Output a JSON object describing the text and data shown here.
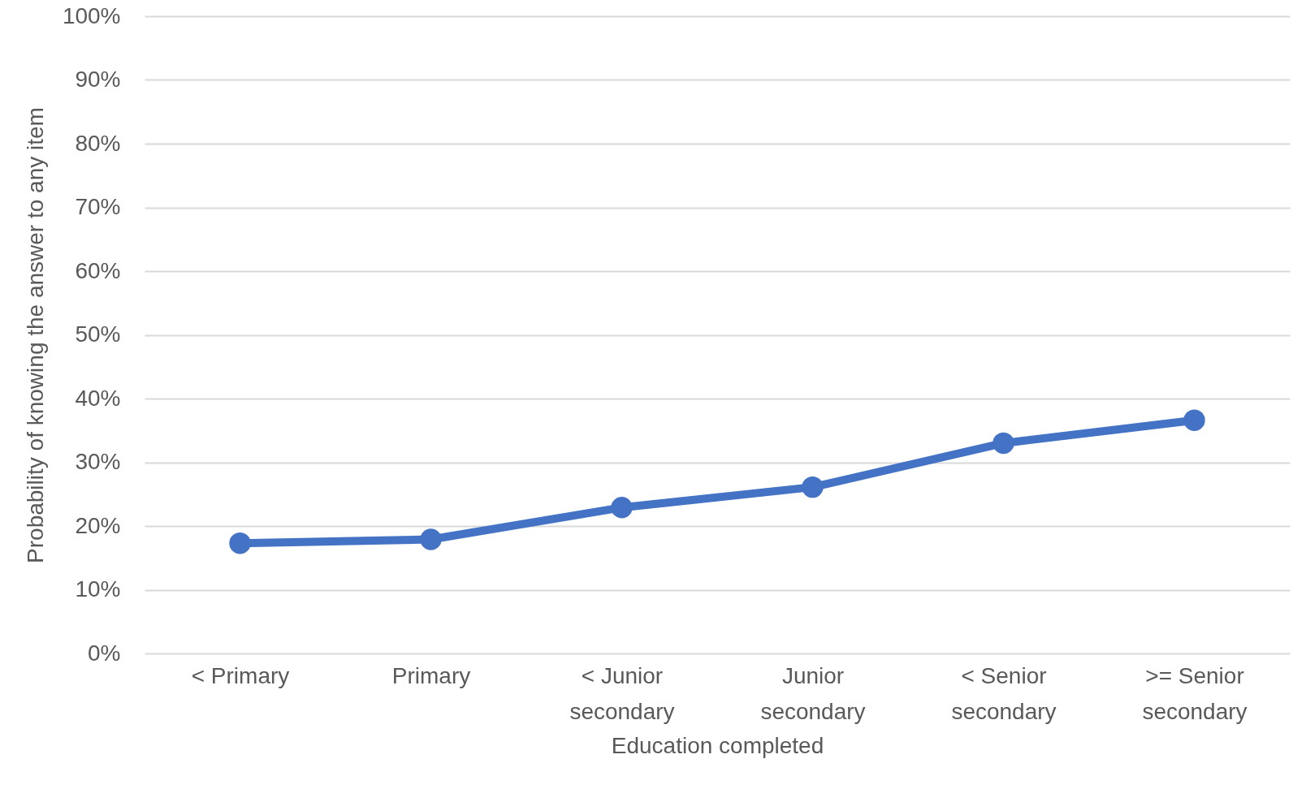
{
  "chart_data": {
    "type": "line",
    "xlabel": "Education completed",
    "ylabel": "Probability of knowing the answer to any item",
    "categories": [
      "< Primary",
      "Primary",
      "< Junior secondary",
      "Junior secondary",
      "< Senior secondary",
      ">= Senior secondary"
    ],
    "series": [
      {
        "color": "#4472c4",
        "values": [
          17.3,
          17.9,
          22.9,
          26.1,
          33.0,
          36.6
        ]
      }
    ],
    "ylim": [
      0,
      100
    ],
    "yticks": [
      {
        "value": 0,
        "label": "0%"
      },
      {
        "value": 10,
        "label": "10%"
      },
      {
        "value": 20,
        "label": "20%"
      },
      {
        "value": 30,
        "label": "30%"
      },
      {
        "value": 40,
        "label": "40%"
      },
      {
        "value": 50,
        "label": "50%"
      },
      {
        "value": 60,
        "label": "60%"
      },
      {
        "value": 70,
        "label": "70%"
      },
      {
        "value": 80,
        "label": "80%"
      },
      {
        "value": 90,
        "label": "90%"
      },
      {
        "value": 100,
        "label": "100%"
      }
    ],
    "grid": "y",
    "marker": "circle",
    "line_style": "solid"
  }
}
